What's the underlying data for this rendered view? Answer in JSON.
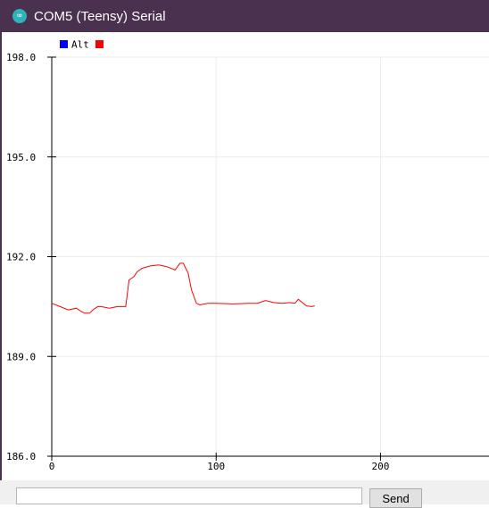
{
  "window": {
    "title": "COM5 (Teensy) Serial",
    "icon": "arduino-infinity-icon",
    "icon_glyph": "∞"
  },
  "legend": {
    "label": "Alt",
    "left_swatch_color": "#0000ff",
    "right_swatch_color": "#ff0000"
  },
  "send": {
    "input_value": "",
    "button_label": "Send"
  },
  "chart_data": {
    "type": "line",
    "xlim": [
      0,
      266
    ],
    "ylim": [
      186.0,
      198.0
    ],
    "x_ticks": [
      0,
      100,
      200
    ],
    "x_tick_labels": [
      "0",
      "100",
      "200"
    ],
    "y_ticks": [
      186.0,
      189.0,
      192.0,
      195.0,
      198.0
    ],
    "y_tick_labels": [
      "186.0",
      "189.0",
      "192.0",
      "195.0",
      "198.0"
    ],
    "grid": true,
    "legend": "top-left",
    "series": [
      {
        "name": "Alt",
        "color": "#ff0000",
        "x": [
          0,
          5,
          10,
          15,
          18,
          20,
          23,
          25,
          28,
          30,
          35,
          40,
          45,
          47,
          50,
          52,
          55,
          60,
          65,
          70,
          75,
          78,
          80,
          83,
          85,
          88,
          90,
          95,
          100,
          110,
          120,
          125,
          130,
          135,
          140,
          145,
          148,
          150,
          153,
          155,
          158,
          160
        ],
        "y": [
          190.6,
          190.5,
          190.4,
          190.45,
          190.35,
          190.3,
          190.3,
          190.4,
          190.5,
          190.5,
          190.45,
          190.5,
          190.5,
          191.3,
          191.4,
          191.55,
          191.65,
          191.72,
          191.75,
          191.7,
          191.6,
          191.8,
          191.8,
          191.5,
          191.0,
          190.6,
          190.55,
          190.6,
          190.6,
          190.58,
          190.6,
          190.6,
          190.68,
          190.62,
          190.6,
          190.62,
          190.6,
          190.72,
          190.6,
          190.52,
          190.5,
          190.52
        ]
      }
    ]
  }
}
